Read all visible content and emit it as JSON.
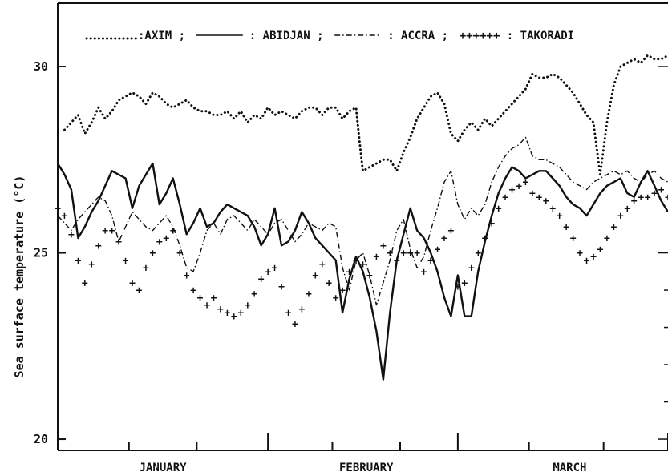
{
  "chart_data": {
    "type": "line",
    "ylabel": "Sea surface temperature (°C)",
    "xlabel": "",
    "ylim": [
      19.7,
      31.7
    ],
    "xlim": [
      0,
      90
    ],
    "yticks": [
      20,
      25,
      30
    ],
    "ytick_labels": [
      "20",
      "25",
      "30"
    ],
    "months": [
      {
        "label": "JANUARY",
        "center": 15.5
      },
      {
        "label": "FEBRUARY",
        "center": 45.5
      },
      {
        "label": "MARCH",
        "center": 75.5
      }
    ],
    "month_boundaries": [
      0,
      31,
      59,
      90
    ],
    "minor_ticks": [
      10.5,
      20.5,
      40.5,
      50.5,
      69.5,
      80.5
    ],
    "grid": false,
    "legend": {
      "placement": "top",
      "entries": [
        {
          "marker": "........",
          "sep": ":",
          "label": "AXIM",
          "after": ";"
        },
        {
          "marker": "————",
          "sep": ":",
          "label": "ABIDJAN",
          "after": ";"
        },
        {
          "marker": "-.-.-.-",
          "sep": ":",
          "label": "ACCRA",
          "after": ";"
        },
        {
          "marker": "++++++",
          "sep": ":",
          "label": "TAKORADI",
          "after": ""
        }
      ]
    },
    "series": [
      {
        "name": "AXIM",
        "style": "dotted",
        "x": [
          1,
          2,
          3,
          4,
          5,
          6,
          7,
          8,
          9,
          10,
          11,
          12,
          13,
          14,
          15,
          16,
          17,
          18,
          19,
          20,
          21,
          22,
          23,
          24,
          25,
          26,
          27,
          28,
          29,
          30,
          31,
          32,
          33,
          34,
          35,
          36,
          37,
          38,
          39,
          40,
          41,
          42,
          43,
          44,
          44.5,
          45,
          46,
          47,
          48,
          49,
          50,
          51,
          52,
          53,
          54,
          55,
          56,
          57,
          58,
          59,
          60,
          61,
          62,
          63,
          64,
          65,
          66,
          67,
          68,
          69,
          70,
          71,
          72,
          73,
          74,
          75,
          76,
          77,
          78,
          79,
          80,
          81,
          82,
          83,
          84,
          85,
          86,
          87,
          88,
          89,
          90
        ],
        "y": [
          28.3,
          28.5,
          28.7,
          28.2,
          28.5,
          28.9,
          28.6,
          28.8,
          29.1,
          29.2,
          29.3,
          29.2,
          29.0,
          29.3,
          29.2,
          29.0,
          28.9,
          29.0,
          29.1,
          28.9,
          28.8,
          28.8,
          28.7,
          28.7,
          28.8,
          28.6,
          28.8,
          28.5,
          28.7,
          28.6,
          28.9,
          28.7,
          28.8,
          28.7,
          28.6,
          28.8,
          28.9,
          28.9,
          28.7,
          28.9,
          28.9,
          28.6,
          28.8,
          28.9,
          28.0,
          27.2,
          27.3,
          27.4,
          27.5,
          27.5,
          27.2,
          27.7,
          28.1,
          28.6,
          28.9,
          29.2,
          29.3,
          29.0,
          28.2,
          28.0,
          28.3,
          28.5,
          28.3,
          28.6,
          28.4,
          28.6,
          28.8,
          29.0,
          29.2,
          29.4,
          29.8,
          29.7,
          29.7,
          29.8,
          29.7,
          29.5,
          29.3,
          29.0,
          28.7,
          28.5,
          27.1,
          28.5,
          29.5,
          30.0,
          30.1,
          30.2,
          30.1,
          30.3,
          30.2,
          30.2,
          30.3
        ]
      },
      {
        "name": "ABIDJAN",
        "style": "solid",
        "x": [
          0,
          1,
          2,
          3,
          4,
          5,
          6,
          7,
          8,
          9,
          10,
          11,
          12,
          13,
          14,
          15,
          16,
          17,
          18,
          19,
          20,
          21,
          22,
          23,
          24,
          25,
          26,
          27,
          28,
          29,
          30,
          31,
          32,
          33,
          34,
          35,
          36,
          37,
          38,
          39,
          40,
          41,
          42,
          43,
          44,
          45,
          46,
          47,
          48,
          49,
          50,
          51,
          52,
          53,
          54,
          55,
          56,
          57,
          58,
          59,
          60,
          61,
          62,
          63,
          64,
          65,
          66,
          67,
          68,
          69,
          70,
          71,
          72,
          73,
          74,
          75,
          76,
          77,
          78,
          79,
          80,
          81,
          82,
          83,
          84,
          85,
          86,
          87,
          88,
          89,
          90
        ],
        "y": [
          27.4,
          27.1,
          26.7,
          25.4,
          25.7,
          26.1,
          26.4,
          26.8,
          27.2,
          27.1,
          27.0,
          26.2,
          26.8,
          27.1,
          27.4,
          26.3,
          26.6,
          27.0,
          26.3,
          25.5,
          25.8,
          26.2,
          25.7,
          25.8,
          26.1,
          26.3,
          26.2,
          26.1,
          26.0,
          25.7,
          25.2,
          25.5,
          26.2,
          25.2,
          25.3,
          25.6,
          26.1,
          25.8,
          25.4,
          25.2,
          25.0,
          24.8,
          23.4,
          24.3,
          24.9,
          24.5,
          23.8,
          22.9,
          21.6,
          23.4,
          24.8,
          25.5,
          26.2,
          25.6,
          25.4,
          25.0,
          24.5,
          23.8,
          23.3,
          24.4,
          23.3,
          23.3,
          24.5,
          25.3,
          26.0,
          26.6,
          27.0,
          27.3,
          27.2,
          27.0,
          27.1,
          27.2,
          27.2,
          27.0,
          26.8,
          26.5,
          26.3,
          26.2,
          26.0,
          26.3,
          26.6,
          26.8,
          26.9,
          27.0,
          26.6,
          26.5,
          26.9,
          27.2,
          26.8,
          26.4,
          26.1
        ]
      },
      {
        "name": "ACCRA",
        "style": "dashdot",
        "x": [
          0,
          1,
          2,
          3,
          4,
          5,
          6,
          7,
          8,
          9,
          10,
          11,
          12,
          13,
          14,
          15,
          16,
          17,
          18,
          19,
          20,
          21,
          22,
          23,
          24,
          25,
          26,
          27,
          28,
          29,
          30,
          31,
          32,
          33,
          34,
          35,
          36,
          37,
          38,
          39,
          40,
          41,
          42,
          43,
          44,
          45,
          46,
          47,
          48,
          49,
          50,
          51,
          52,
          53,
          54,
          55,
          56,
          57,
          58,
          59,
          60,
          61,
          62,
          63,
          64,
          65,
          66,
          67,
          68,
          69,
          70,
          71,
          72,
          73,
          74,
          75,
          76,
          77,
          78,
          79,
          80,
          81,
          82,
          83,
          84,
          85,
          86,
          87,
          88,
          89,
          90
        ],
        "y": [
          26.0,
          25.8,
          25.6,
          25.9,
          26.1,
          26.3,
          26.5,
          26.4,
          26.0,
          25.3,
          25.7,
          26.1,
          25.9,
          25.7,
          25.6,
          25.8,
          26.0,
          25.7,
          25.2,
          24.6,
          24.5,
          25.0,
          25.6,
          25.8,
          25.5,
          25.9,
          26.0,
          25.8,
          25.6,
          25.9,
          25.7,
          25.5,
          25.8,
          25.9,
          25.6,
          25.3,
          25.5,
          25.8,
          25.7,
          25.6,
          25.8,
          25.7,
          24.6,
          24.0,
          24.8,
          25.0,
          24.4,
          23.6,
          24.2,
          24.8,
          25.6,
          25.9,
          25.1,
          24.6,
          24.9,
          25.6,
          26.2,
          26.9,
          27.2,
          26.3,
          25.9,
          26.2,
          26.0,
          26.3,
          26.9,
          27.3,
          27.6,
          27.8,
          27.9,
          28.1,
          27.6,
          27.5,
          27.5,
          27.4,
          27.3,
          27.1,
          26.9,
          26.8,
          26.7,
          26.9,
          27.0,
          27.1,
          27.2,
          27.1,
          27.2,
          27.0,
          26.9,
          27.1,
          27.2,
          27.0,
          26.9
        ]
      },
      {
        "name": "TAKORADI",
        "style": "plus",
        "x": [
          0,
          1,
          2,
          3,
          4,
          5,
          6,
          7,
          8,
          9,
          10,
          11,
          12,
          13,
          14,
          15,
          16,
          17,
          18,
          19,
          20,
          21,
          22,
          23,
          24,
          25,
          26,
          27,
          28,
          29,
          30,
          31,
          32,
          33,
          34,
          35,
          36,
          37,
          38,
          39,
          40,
          41,
          42,
          43,
          44,
          45,
          46,
          47,
          48,
          49,
          50,
          51,
          52,
          53,
          54,
          55,
          56,
          57,
          58,
          59,
          60,
          61,
          62,
          63,
          64,
          65,
          66,
          67,
          68,
          69,
          70,
          71,
          72,
          73,
          74,
          75,
          76,
          77,
          78,
          79,
          80,
          81,
          82,
          83,
          84,
          85,
          86,
          87,
          88,
          89,
          90
        ],
        "y": [
          26.2,
          26.0,
          25.5,
          24.8,
          24.2,
          24.7,
          25.2,
          25.6,
          25.6,
          25.3,
          24.8,
          24.2,
          24.0,
          24.6,
          25.0,
          25.3,
          25.4,
          25.6,
          25.0,
          24.4,
          24.0,
          23.8,
          23.6,
          23.8,
          23.5,
          23.4,
          23.3,
          23.4,
          23.6,
          23.9,
          24.3,
          24.5,
          24.6,
          24.1,
          23.4,
          23.1,
          23.5,
          23.9,
          24.4,
          24.7,
          24.2,
          23.8,
          24.0,
          24.5,
          24.8,
          24.7,
          24.4,
          24.9,
          25.2,
          25.0,
          24.8,
          25.0,
          25.0,
          25.0,
          24.5,
          24.8,
          25.1,
          25.4,
          25.6,
          24.1,
          24.2,
          24.6,
          25.0,
          25.4,
          25.8,
          26.2,
          26.5,
          26.7,
          26.8,
          26.9,
          26.6,
          26.5,
          26.4,
          26.2,
          26.0,
          25.7,
          25.4,
          25.0,
          24.8,
          24.9,
          25.1,
          25.4,
          25.7,
          26.0,
          26.2,
          26.4,
          26.5,
          26.5,
          26.6,
          26.7,
          26.5
        ]
      }
    ]
  }
}
